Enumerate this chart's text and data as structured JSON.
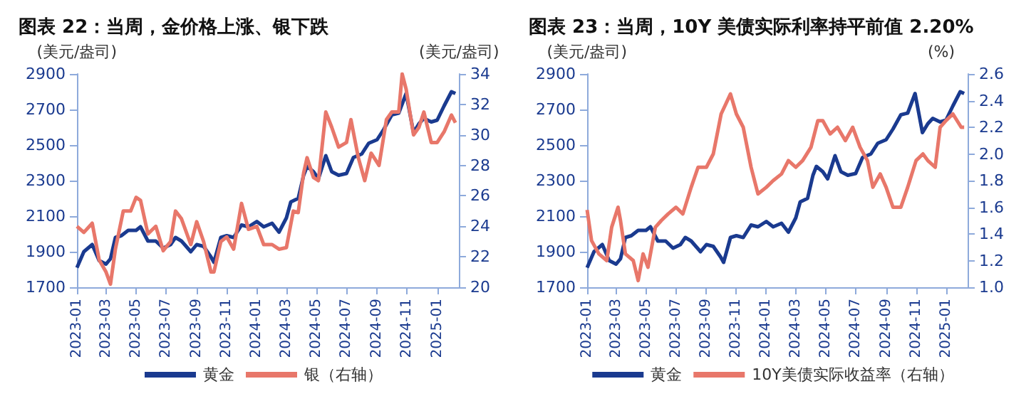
{
  "chart_data": [
    {
      "type": "line",
      "title": "图表 22：当周，金价格上涨、银下跌",
      "ylabel": "(美元/盎司)",
      "y2label": "(美元/盎司)",
      "x": [
        "2023-01-01",
        "2023-01-15",
        "2023-02-01",
        "2023-02-15",
        "2023-03-01",
        "2023-03-10",
        "2023-03-20",
        "2023-04-01",
        "2023-04-15",
        "2023-05-01",
        "2023-05-10",
        "2023-05-25",
        "2023-06-10",
        "2023-06-25",
        "2023-07-10",
        "2023-07-20",
        "2023-08-01",
        "2023-08-20",
        "2023-09-01",
        "2023-09-15",
        "2023-09-30",
        "2023-10-06",
        "2023-10-20",
        "2023-11-01",
        "2023-11-15",
        "2023-12-01",
        "2023-12-15",
        "2024-01-01",
        "2024-01-15",
        "2024-02-01",
        "2024-02-15",
        "2024-03-01",
        "2024-03-10",
        "2024-03-25",
        "2024-04-05",
        "2024-04-12",
        "2024-04-25",
        "2024-05-05",
        "2024-05-20",
        "2024-06-01",
        "2024-06-15",
        "2024-07-01",
        "2024-07-15",
        "2024-08-01",
        "2024-08-15",
        "2024-09-01",
        "2024-09-15",
        "2024-10-01",
        "2024-10-15",
        "2024-10-30",
        "2024-11-14",
        "2024-11-25",
        "2024-12-05",
        "2024-12-20",
        "2025-01-01",
        "2025-01-15",
        "2025-01-30",
        "2025-02-07"
      ],
      "series": [
        {
          "name": "黄金",
          "color": "#1a3a8f",
          "values": [
            1810,
            1900,
            1940,
            1850,
            1830,
            1860,
            1980,
            1990,
            2020,
            2020,
            2040,
            1960,
            1960,
            1920,
            1940,
            1980,
            1960,
            1900,
            1940,
            1930,
            1870,
            1840,
            1980,
            1990,
            1980,
            2050,
            2040,
            2070,
            2040,
            2060,
            2010,
            2090,
            2180,
            2200,
            2330,
            2380,
            2350,
            2310,
            2440,
            2350,
            2330,
            2340,
            2430,
            2450,
            2510,
            2530,
            2590,
            2670,
            2680,
            2790,
            2570,
            2620,
            2650,
            2630,
            2640,
            2720,
            2800,
            2790
          ]
        },
        {
          "name": "银（右轴）",
          "color": "#e8776a",
          "axis": "y2",
          "x": [
            "2023-01-01",
            "2023-01-15",
            "2023-02-01",
            "2023-02-15",
            "2023-03-01",
            "2023-03-10",
            "2023-03-20",
            "2023-04-05",
            "2023-04-20",
            "2023-05-01",
            "2023-05-10",
            "2023-05-25",
            "2023-06-10",
            "2023-06-25",
            "2023-07-10",
            "2023-07-20",
            "2023-08-01",
            "2023-08-20",
            "2023-09-01",
            "2023-09-15",
            "2023-09-30",
            "2023-10-06",
            "2023-10-20",
            "2023-11-01",
            "2023-11-15",
            "2023-12-01",
            "2023-12-15",
            "2024-01-01",
            "2024-01-15",
            "2024-02-01",
            "2024-02-15",
            "2024-03-01",
            "2024-03-15",
            "2024-03-25",
            "2024-04-05",
            "2024-04-12",
            "2024-04-25",
            "2024-05-05",
            "2024-05-20",
            "2024-06-01",
            "2024-06-15",
            "2024-07-01",
            "2024-07-10",
            "2024-07-25",
            "2024-08-07",
            "2024-08-20",
            "2024-09-05",
            "2024-09-20",
            "2024-10-01",
            "2024-10-15",
            "2024-10-22",
            "2024-10-30",
            "2024-11-14",
            "2024-11-25",
            "2024-12-05",
            "2024-12-20",
            "2025-01-01",
            "2025-01-15",
            "2025-01-30",
            "2025-02-07"
          ],
          "values": [
            24.0,
            23.6,
            24.2,
            21.8,
            21.0,
            20.2,
            22.5,
            25.0,
            25.0,
            25.9,
            25.7,
            23.5,
            24.0,
            22.4,
            23.0,
            25.0,
            24.5,
            22.8,
            24.3,
            23.0,
            21.0,
            21.0,
            23.0,
            23.3,
            22.5,
            25.5,
            23.8,
            24.0,
            22.8,
            22.8,
            22.5,
            22.6,
            25.0,
            24.9,
            27.5,
            28.5,
            27.2,
            27.0,
            31.5,
            30.5,
            29.2,
            29.5,
            31.0,
            28.5,
            27.0,
            28.8,
            28.0,
            31.0,
            31.5,
            31.5,
            34.0,
            33.0,
            30.0,
            30.5,
            31.5,
            29.5,
            29.5,
            30.2,
            31.3,
            30.8
          ]
        }
      ],
      "xlim": [
        "2023-01-01",
        "2025-02-14"
      ],
      "xticks": [
        "2023-01",
        "2023-03",
        "2023-05",
        "2023-07",
        "2023-09",
        "2023-11",
        "2024-01",
        "2024-03",
        "2024-05",
        "2024-07",
        "2024-09",
        "2024-11",
        "2025-01"
      ],
      "ylim": [
        1700,
        2900
      ],
      "yticks": [
        1700,
        1900,
        2100,
        2300,
        2500,
        2700,
        2900
      ],
      "y2lim": [
        20,
        34
      ],
      "y2ticks": [
        20,
        22,
        24,
        26,
        28,
        30,
        32,
        34
      ],
      "legend": "bottom",
      "grid": false,
      "marker": "none"
    },
    {
      "type": "line",
      "title": "图表 23：当周，10Y 美债实际利率持平前值 2.20%",
      "ylabel": "(美元/盎司)",
      "y2label": "(%)",
      "x": [
        "2023-01-01",
        "2023-01-15",
        "2023-02-01",
        "2023-02-15",
        "2023-03-01",
        "2023-03-10",
        "2023-03-20",
        "2023-04-01",
        "2023-04-15",
        "2023-05-01",
        "2023-05-10",
        "2023-05-25",
        "2023-06-10",
        "2023-06-25",
        "2023-07-10",
        "2023-07-20",
        "2023-08-01",
        "2023-08-20",
        "2023-09-01",
        "2023-09-15",
        "2023-09-30",
        "2023-10-06",
        "2023-10-20",
        "2023-11-01",
        "2023-11-15",
        "2023-12-01",
        "2023-12-15",
        "2024-01-01",
        "2024-01-15",
        "2024-02-01",
        "2024-02-15",
        "2024-03-01",
        "2024-03-10",
        "2024-03-25",
        "2024-04-05",
        "2024-04-12",
        "2024-04-25",
        "2024-05-05",
        "2024-05-20",
        "2024-06-01",
        "2024-06-15",
        "2024-07-01",
        "2024-07-15",
        "2024-08-01",
        "2024-08-15",
        "2024-09-01",
        "2024-09-15",
        "2024-10-01",
        "2024-10-15",
        "2024-10-30",
        "2024-11-14",
        "2024-11-25",
        "2024-12-05",
        "2024-12-20",
        "2025-01-01",
        "2025-01-15",
        "2025-01-30",
        "2025-02-07"
      ],
      "series": [
        {
          "name": "黄金",
          "color": "#1a3a8f",
          "values": [
            1810,
            1900,
            1940,
            1850,
            1830,
            1860,
            1980,
            1990,
            2020,
            2020,
            2040,
            1960,
            1960,
            1920,
            1940,
            1980,
            1960,
            1900,
            1940,
            1930,
            1870,
            1840,
            1980,
            1990,
            1980,
            2050,
            2040,
            2070,
            2040,
            2060,
            2010,
            2090,
            2180,
            2200,
            2330,
            2380,
            2350,
            2310,
            2440,
            2350,
            2330,
            2340,
            2430,
            2450,
            2510,
            2530,
            2590,
            2670,
            2680,
            2790,
            2570,
            2620,
            2650,
            2630,
            2640,
            2720,
            2800,
            2790
          ]
        },
        {
          "name": "10Y美债实际收益率（右轴）",
          "color": "#e8776a",
          "axis": "y2",
          "x": [
            "2023-01-01",
            "2023-01-10",
            "2023-01-25",
            "2023-02-10",
            "2023-02-20",
            "2023-03-05",
            "2023-03-10",
            "2023-03-20",
            "2023-04-05",
            "2023-04-15",
            "2023-04-25",
            "2023-05-05",
            "2023-05-20",
            "2023-06-01",
            "2023-06-15",
            "2023-07-01",
            "2023-07-15",
            "2023-08-01",
            "2023-08-15",
            "2023-09-01",
            "2023-09-15",
            "2023-10-01",
            "2023-10-20",
            "2023-11-01",
            "2023-11-15",
            "2023-12-01",
            "2023-12-15",
            "2024-01-01",
            "2024-01-15",
            "2024-02-01",
            "2024-02-15",
            "2024-03-01",
            "2024-03-15",
            "2024-04-01",
            "2024-04-15",
            "2024-04-25",
            "2024-05-10",
            "2024-05-25",
            "2024-06-10",
            "2024-06-25",
            "2024-07-10",
            "2024-07-25",
            "2024-08-05",
            "2024-08-20",
            "2024-09-01",
            "2024-09-15",
            "2024-10-01",
            "2024-10-15",
            "2024-11-01",
            "2024-11-15",
            "2024-11-25",
            "2024-12-10",
            "2024-12-20",
            "2025-01-01",
            "2025-01-15",
            "2025-02-01",
            "2025-02-07"
          ],
          "values": [
            1.58,
            1.35,
            1.25,
            1.2,
            1.45,
            1.6,
            1.5,
            1.25,
            1.2,
            1.05,
            1.25,
            1.15,
            1.45,
            1.5,
            1.55,
            1.6,
            1.55,
            1.75,
            1.9,
            1.9,
            2.0,
            2.3,
            2.45,
            2.3,
            2.2,
            1.9,
            1.7,
            1.75,
            1.8,
            1.85,
            1.95,
            1.9,
            1.95,
            2.05,
            2.25,
            2.25,
            2.15,
            2.2,
            2.1,
            2.2,
            2.05,
            1.95,
            1.75,
            1.85,
            1.75,
            1.6,
            1.6,
            1.75,
            1.95,
            2.0,
            1.95,
            1.9,
            2.2,
            2.25,
            2.3,
            2.2,
            2.2
          ]
        }
      ],
      "xlim": [
        "2023-01-01",
        "2025-02-14"
      ],
      "xticks": [
        "2023-01",
        "2023-03",
        "2023-05",
        "2023-07",
        "2023-09",
        "2023-11",
        "2024-01",
        "2024-03",
        "2024-05",
        "2024-07",
        "2024-09",
        "2024-11",
        "2025-01"
      ],
      "ylim": [
        1700,
        2900
      ],
      "yticks": [
        1700,
        1900,
        2100,
        2300,
        2500,
        2700,
        2900
      ],
      "y2lim": [
        1.0,
        2.6
      ],
      "y2ticks": [
        {
          "value": 1,
          "label": "1.0"
        },
        1.2,
        1.4,
        1.6,
        1.8,
        {
          "value": 2,
          "label": "2.0"
        },
        2.2,
        2.4,
        2.6
      ],
      "legend": "bottom",
      "grid": false,
      "marker": "none"
    }
  ]
}
